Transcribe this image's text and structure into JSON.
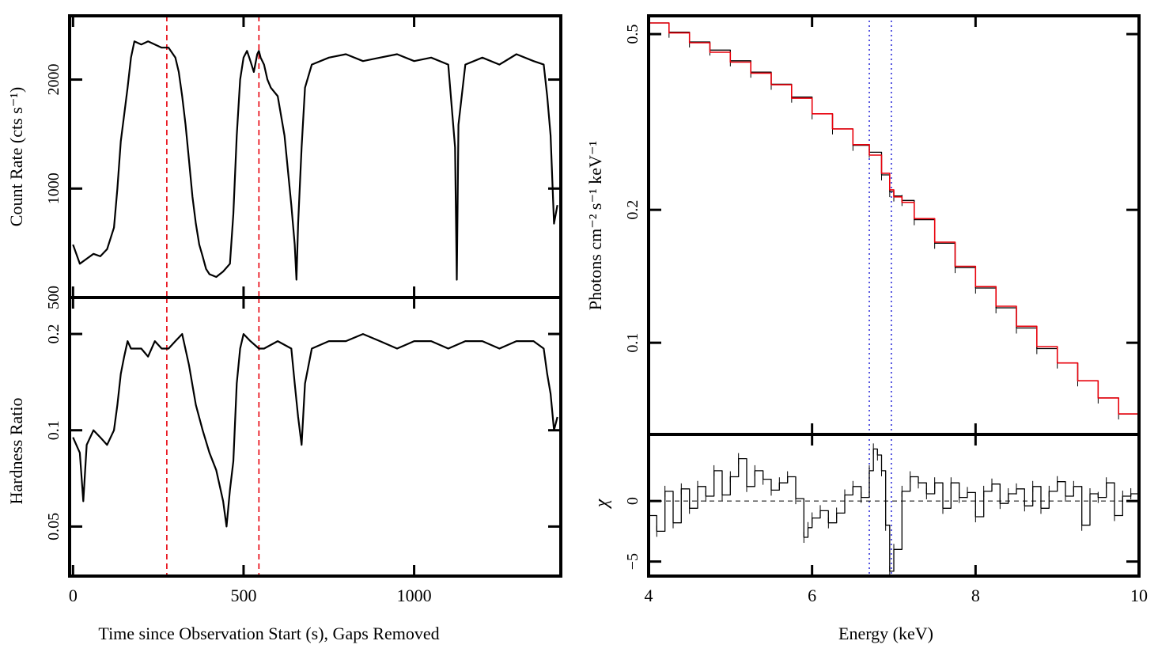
{
  "colors": {
    "data": "#000000",
    "marker": "#e8000b",
    "model": "#e8000b",
    "line": "#1f1fd6",
    "frame": "#000000"
  },
  "chart_data": [
    {
      "type": "line",
      "panel": "light curve (count rate)",
      "ylabel": "Count Rate (cts s⁻¹)",
      "yscale": "log",
      "ylim": [
        500,
        3000
      ],
      "xlim": [
        -10,
        1430
      ],
      "yticks": [
        500,
        1000,
        2000
      ],
      "ytick_labels": [
        "500",
        "1000",
        "2000"
      ],
      "vertical_markers": [
        275,
        545
      ],
      "series": [
        {
          "x": [
            0,
            20,
            40,
            60,
            80,
            100,
            120,
            130,
            140,
            150,
            160,
            170,
            180,
            200,
            220,
            240,
            260,
            280,
            300,
            310,
            320,
            330,
            340,
            350,
            360,
            370,
            380,
            390,
            400,
            420,
            440,
            460,
            470,
            480,
            490,
            500,
            510,
            520,
            530,
            540,
            545,
            550,
            560,
            570,
            580,
            600,
            620,
            640,
            650,
            655,
            660,
            670,
            680,
            700,
            750,
            800,
            850,
            900,
            950,
            1000,
            1050,
            1100,
            1120,
            1125,
            1130,
            1150,
            1200,
            1250,
            1300,
            1350,
            1380,
            1390,
            1400,
            1410,
            1420
          ],
          "y": [
            700,
            620,
            640,
            660,
            650,
            680,
            780,
            1000,
            1350,
            1600,
            1900,
            2300,
            2550,
            2500,
            2550,
            2500,
            2450,
            2450,
            2300,
            2100,
            1800,
            1500,
            1200,
            950,
            800,
            700,
            650,
            600,
            580,
            570,
            590,
            620,
            850,
            1400,
            2000,
            2300,
            2400,
            2250,
            2100,
            2350,
            2400,
            2300,
            2200,
            2000,
            1900,
            1800,
            1400,
            900,
            700,
            560,
            800,
            1300,
            1900,
            2200,
            2300,
            2350,
            2250,
            2300,
            2350,
            2250,
            2300,
            2200,
            1300,
            560,
            1500,
            2200,
            2300,
            2200,
            2350,
            2250,
            2200,
            1800,
            1400,
            800,
            900
          ]
        }
      ]
    },
    {
      "type": "line",
      "panel": "hardness ratio",
      "ylabel": "Hardness Ratio",
      "yscale": "log",
      "ylim": [
        0.035,
        0.26
      ],
      "xlim": [
        -10,
        1430
      ],
      "yticks": [
        0.05,
        0.1,
        0.2
      ],
      "ytick_labels": [
        "0.05",
        "0.1",
        "0.2"
      ],
      "xticks": [
        0,
        500,
        1000
      ],
      "xtick_labels": [
        "0",
        "500",
        "1000"
      ],
      "xlabel": "Time since Observation Start (s), Gaps Removed",
      "vertical_markers": [
        275,
        545
      ],
      "series": [
        {
          "x": [
            0,
            20,
            30,
            40,
            60,
            80,
            100,
            120,
            130,
            140,
            150,
            160,
            170,
            180,
            200,
            220,
            240,
            260,
            280,
            300,
            320,
            340,
            360,
            380,
            400,
            420,
            440,
            450,
            460,
            470,
            480,
            490,
            500,
            520,
            545,
            560,
            600,
            640,
            650,
            660,
            670,
            680,
            700,
            750,
            800,
            850,
            900,
            950,
            1000,
            1050,
            1100,
            1150,
            1200,
            1250,
            1300,
            1350,
            1380,
            1390,
            1400,
            1410,
            1420
          ],
          "y": [
            0.095,
            0.085,
            0.06,
            0.09,
            0.1,
            0.095,
            0.09,
            0.1,
            0.12,
            0.15,
            0.17,
            0.19,
            0.18,
            0.18,
            0.18,
            0.17,
            0.19,
            0.18,
            0.18,
            0.19,
            0.2,
            0.16,
            0.12,
            0.1,
            0.085,
            0.075,
            0.06,
            0.05,
            0.065,
            0.08,
            0.14,
            0.18,
            0.2,
            0.19,
            0.18,
            0.18,
            0.19,
            0.18,
            0.14,
            0.11,
            0.09,
            0.14,
            0.18,
            0.19,
            0.19,
            0.2,
            0.19,
            0.18,
            0.19,
            0.19,
            0.18,
            0.19,
            0.19,
            0.18,
            0.19,
            0.19,
            0.18,
            0.15,
            0.13,
            0.1,
            0.11
          ]
        }
      ]
    },
    {
      "type": "line",
      "panel": "spectrum",
      "ylabel": "Photons cm⁻² s⁻¹ keV⁻¹",
      "yscale": "log",
      "ylim": [
        0.062,
        0.55
      ],
      "xlim": [
        4,
        10
      ],
      "yticks": [
        0.1,
        0.2,
        0.5
      ],
      "ytick_labels": [
        "0.1",
        "0.2",
        "0.5"
      ],
      "vertical_markers": [
        6.7,
        6.97
      ],
      "series": [
        {
          "name": "data",
          "x": [
            4.0,
            4.25,
            4.5,
            4.75,
            5.0,
            5.25,
            5.5,
            5.75,
            6.0,
            6.25,
            6.5,
            6.7,
            6.85,
            6.95,
            7.0,
            7.1,
            7.25,
            7.5,
            7.75,
            8.0,
            8.25,
            8.5,
            8.75,
            9.0,
            9.25,
            9.5,
            9.75,
            10.0
          ],
          "y": [
            0.53,
            0.505,
            0.48,
            0.46,
            0.435,
            0.41,
            0.385,
            0.36,
            0.33,
            0.305,
            0.28,
            0.27,
            0.24,
            0.22,
            0.215,
            0.21,
            0.19,
            0.168,
            0.148,
            0.133,
            0.12,
            0.108,
            0.097,
            0.09,
            0.082,
            0.075,
            0.069,
            0.064
          ]
        },
        {
          "name": "model",
          "x": [
            4.0,
            4.25,
            4.5,
            4.75,
            5.0,
            5.25,
            5.5,
            5.75,
            6.0,
            6.25,
            6.5,
            6.7,
            6.85,
            6.95,
            7.0,
            7.1,
            7.25,
            7.5,
            7.75,
            8.0,
            8.25,
            8.5,
            8.75,
            9.0,
            9.25,
            9.5,
            9.75,
            10.0
          ],
          "y": [
            0.53,
            0.503,
            0.478,
            0.455,
            0.432,
            0.408,
            0.384,
            0.358,
            0.33,
            0.305,
            0.281,
            0.266,
            0.242,
            0.222,
            0.214,
            0.208,
            0.191,
            0.169,
            0.149,
            0.134,
            0.121,
            0.109,
            0.098,
            0.09,
            0.082,
            0.075,
            0.069,
            0.064
          ]
        }
      ]
    },
    {
      "type": "line",
      "panel": "residuals",
      "ylabel": "χ",
      "ylim": [
        -6.2,
        5.5
      ],
      "xlim": [
        4,
        10
      ],
      "yticks": [
        -5,
        0
      ],
      "ytick_labels": [
        "−5",
        "0"
      ],
      "xticks": [
        4,
        6,
        8,
        10
      ],
      "xtick_labels": [
        "4",
        "6",
        "8",
        "10"
      ],
      "xlabel": "Energy (keV)",
      "vertical_markers": [
        6.7,
        6.97
      ],
      "series": [
        {
          "x": [
            4.0,
            4.1,
            4.2,
            4.3,
            4.4,
            4.5,
            4.6,
            4.7,
            4.8,
            4.9,
            5.0,
            5.1,
            5.2,
            5.3,
            5.4,
            5.5,
            5.6,
            5.7,
            5.8,
            5.9,
            5.95,
            6.0,
            6.1,
            6.2,
            6.3,
            6.4,
            6.5,
            6.6,
            6.7,
            6.75,
            6.8,
            6.85,
            6.9,
            6.95,
            7.0,
            7.1,
            7.2,
            7.3,
            7.4,
            7.5,
            7.6,
            7.7,
            7.8,
            7.9,
            8.0,
            8.1,
            8.2,
            8.3,
            8.4,
            8.5,
            8.6,
            8.7,
            8.8,
            8.9,
            9.0,
            9.1,
            9.2,
            9.3,
            9.4,
            9.5,
            9.6,
            9.7,
            9.8,
            9.9,
            10.0
          ],
          "y": [
            -1.2,
            -2.5,
            0.8,
            -1.8,
            1.0,
            -0.6,
            1.2,
            0.4,
            2.5,
            0.5,
            2.0,
            3.5,
            1.2,
            2.5,
            1.8,
            0.9,
            1.5,
            2.0,
            0.2,
            -3.0,
            -2.2,
            -1.4,
            -0.8,
            -1.8,
            -1.0,
            0.5,
            1.2,
            0.3,
            2.5,
            4.3,
            3.8,
            2.5,
            -2.0,
            -5.8,
            -4.0,
            0.8,
            2.0,
            1.5,
            0.6,
            1.5,
            -0.6,
            1.5,
            0.3,
            0.7,
            -1.3,
            0.8,
            1.4,
            -0.2,
            0.6,
            1.0,
            -0.4,
            1.2,
            -0.6,
            0.8,
            1.6,
            0.4,
            1.2,
            -2.0,
            0.6,
            0.3,
            1.5,
            -1.2,
            0.4,
            0.6,
            -0.3
          ]
        }
      ]
    }
  ]
}
